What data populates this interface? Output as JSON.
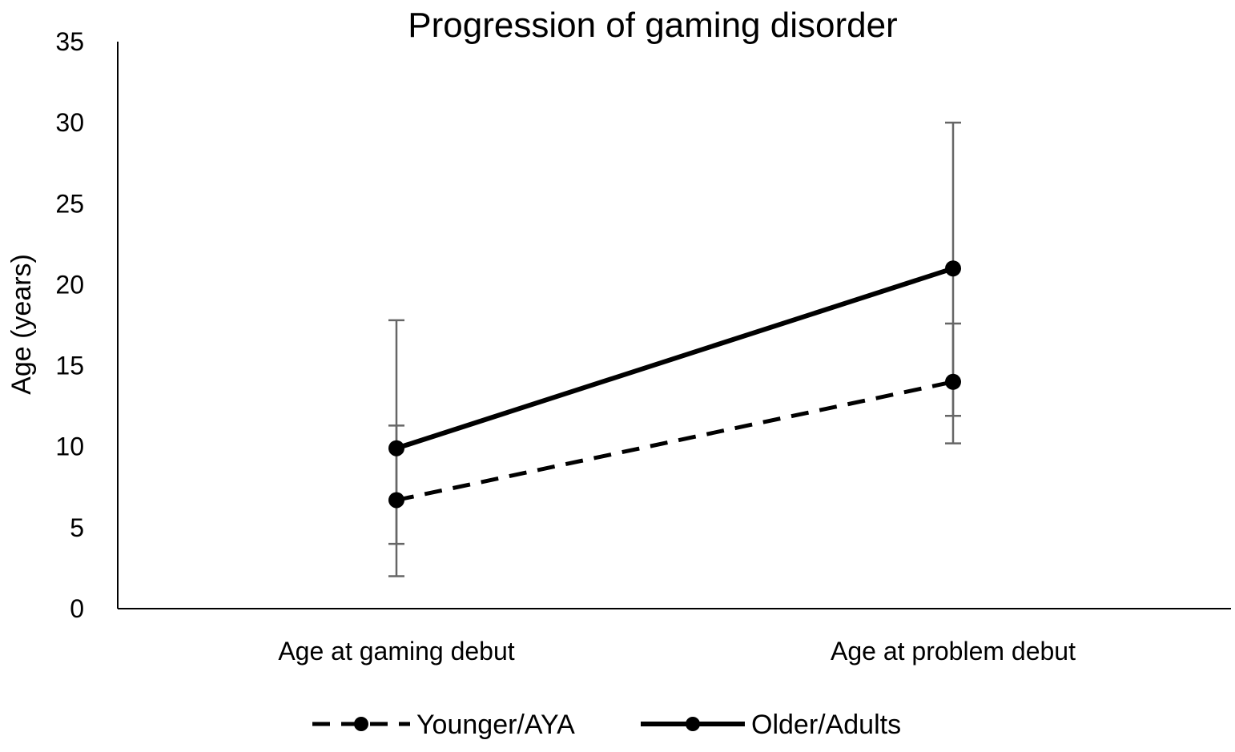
{
  "chart_data": {
    "type": "line",
    "title": "Progression of gaming disorder",
    "xlabel": "",
    "ylabel": "Age (years)",
    "ylim": [
      0,
      35
    ],
    "yticks": [
      0,
      5,
      10,
      15,
      20,
      25,
      30,
      35
    ],
    "categories": [
      "Age at gaming debut",
      "Age at problem debut"
    ],
    "series": [
      {
        "name": "Younger/AYA",
        "line_style": "dashed",
        "color": "#000000",
        "values": [
          6.7,
          14.0
        ],
        "error_low": [
          2.0,
          10.2
        ],
        "error_high": [
          11.3,
          17.6
        ]
      },
      {
        "name": "Older/Adults",
        "line_style": "solid",
        "color": "#000000",
        "values": [
          9.9,
          21.0
        ],
        "error_low": [
          4.0,
          11.9
        ],
        "error_high": [
          17.8,
          30.0
        ]
      }
    ],
    "error_bar_color": "#666666",
    "grid": false,
    "legend_position": "bottom"
  }
}
